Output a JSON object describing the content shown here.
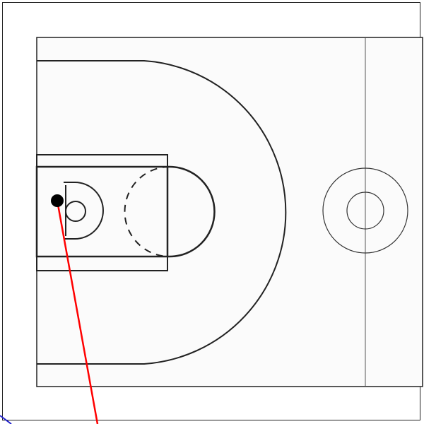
{
  "diagram": {
    "description_free": true,
    "court": {
      "line_color": "#222222",
      "thin_line_color": "#333333",
      "background": "#fbfbfb"
    },
    "marker": {
      "color": "#000000"
    },
    "trajectory": {
      "color": "#ff0000"
    },
    "corner_stroke": {
      "color": "#2222cc"
    }
  }
}
